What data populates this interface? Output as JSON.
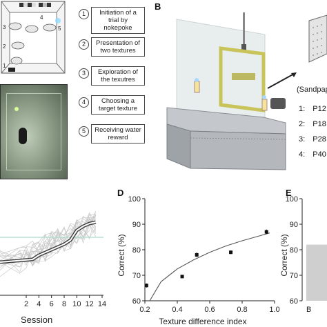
{
  "panel_letters": {
    "b": "B",
    "d": "D",
    "e": "E"
  },
  "steps": [
    {
      "num": "1",
      "text": "Initiation of a trial by nokepoke"
    },
    {
      "num": "2",
      "text": "Presentation of two textures"
    },
    {
      "num": "3",
      "text": "Exploration of the texutres"
    },
    {
      "num": "4",
      "text": "Choosing a target texture"
    },
    {
      "num": "5",
      "text": "Receiving water reward"
    }
  ],
  "sandpaper_label": "(Sandpap",
  "sandpaper_list": [
    {
      "num": "1:",
      "text": "P12"
    },
    {
      "num": "2:",
      "text": "P18"
    },
    {
      "num": "3:",
      "text": "P28"
    },
    {
      "num": "4:",
      "text": "P40"
    }
  ],
  "panel_c": {
    "xlabel": "Session",
    "xticks": [
      "2",
      "4",
      "6",
      "8",
      "10",
      "12",
      "14"
    ]
  },
  "chart_data": [
    {
      "type": "scatter",
      "panel": "D",
      "xlabel": "Texture difference index",
      "ylabel": "Correct (%)",
      "xlim": [
        0.2,
        1.0
      ],
      "ylim": [
        60,
        100
      ],
      "xticks": [
        "0.2",
        "0.4",
        "0.6",
        "0.8",
        "1.0"
      ],
      "yticks": [
        "60",
        "70",
        "80",
        "90",
        "100"
      ],
      "points": [
        {
          "x": 0.21,
          "y": 66,
          "err": 0.8
        },
        {
          "x": 0.43,
          "y": 69.5,
          "err": 0.5
        },
        {
          "x": 0.52,
          "y": 78,
          "err": 0.9
        },
        {
          "x": 0.73,
          "y": 79,
          "err": 0.7
        },
        {
          "x": 0.95,
          "y": 87,
          "err": 0.9
        }
      ],
      "fit": [
        [
          0.23,
          60
        ],
        [
          0.3,
          67.5
        ],
        [
          0.4,
          72.5
        ],
        [
          0.5,
          76
        ],
        [
          0.6,
          79
        ],
        [
          0.7,
          81.5
        ],
        [
          0.8,
          83.5
        ],
        [
          0.9,
          85.3
        ],
        [
          0.97,
          86.6
        ]
      ]
    },
    {
      "type": "bar",
      "panel": "E",
      "ylabel": "Correct (%)",
      "ylim": [
        60,
        100
      ],
      "yticks": [
        "60",
        "70",
        "80",
        "90",
        "100"
      ],
      "categories": [
        "B"
      ],
      "values": [
        82
      ]
    }
  ],
  "colors": {
    "threshold_line": "#a8dcc8",
    "bar_fill": "#cfcfcf",
    "grey_lines": "#c8c8c8"
  }
}
